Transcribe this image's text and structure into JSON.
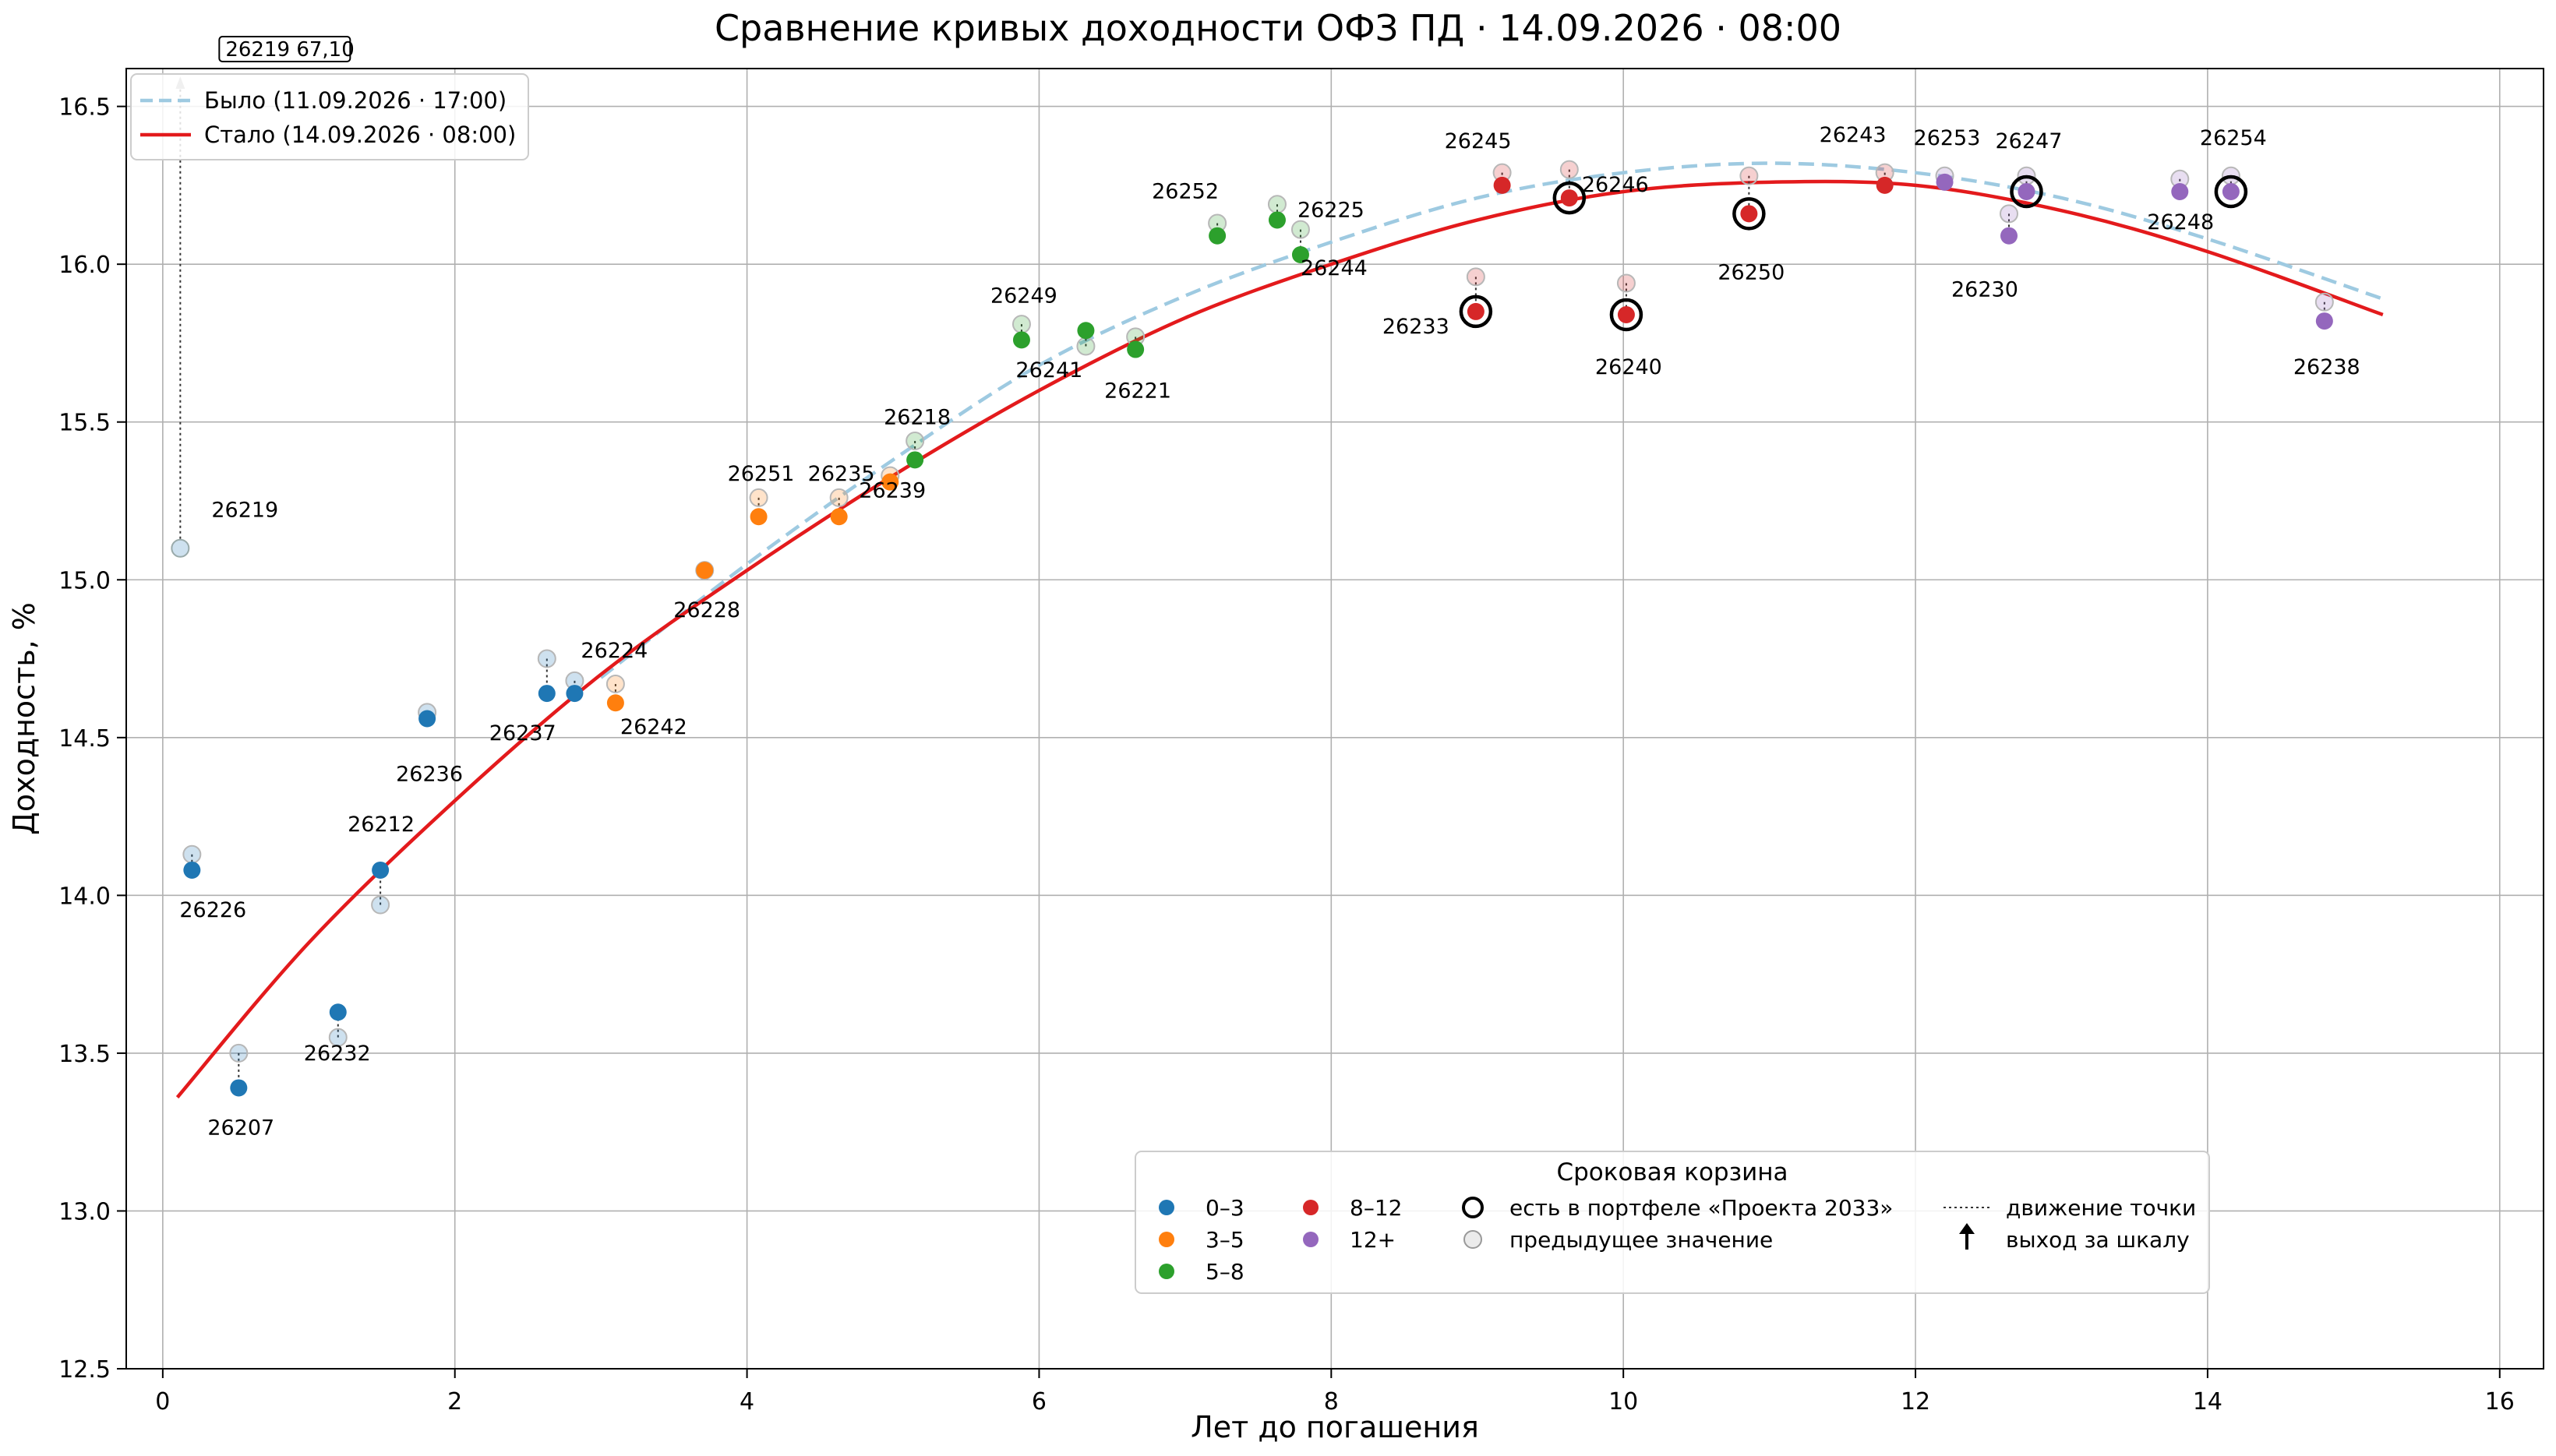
{
  "chart_data": {
    "type": "scatter",
    "title": "Сравнение кривых доходности ОФЗ ПД · 14.09.2026 · 08:00",
    "xlabel": "Лет до погашения",
    "ylabel": "Доходность, %",
    "xlim": [
      -0.25,
      16.3
    ],
    "ylim": [
      12.5,
      16.62
    ],
    "xticks": [
      0,
      2,
      4,
      6,
      8,
      10,
      12,
      14,
      16
    ],
    "yticks": [
      12.5,
      13.0,
      13.5,
      14.0,
      14.5,
      15.0,
      15.5,
      16.0,
      16.5
    ],
    "grid": true,
    "curves": [
      {
        "name": "Было (11.09.2026 · 17:00)",
        "style": "dashed",
        "color": "#9ecae1",
        "x": [
          3.0,
          4.0,
          5.0,
          6.0,
          7.0,
          8.0,
          9.0,
          10.0,
          11.0,
          12.0,
          13.0,
          14.0,
          15.2
        ],
        "y": [
          14.69,
          15.05,
          15.38,
          15.68,
          15.9,
          16.07,
          16.21,
          16.29,
          16.32,
          16.29,
          16.21,
          16.08,
          15.89
        ]
      },
      {
        "name": "Стало (14.09.2026 · 08:00)",
        "style": "solid",
        "color": "#e31a1c",
        "x": [
          0.1,
          1.0,
          2.0,
          3.0,
          4.0,
          5.0,
          6.0,
          7.0,
          8.0,
          9.0,
          10.0,
          11.0,
          12.0,
          13.0,
          14.0,
          15.2
        ],
        "y": [
          13.36,
          13.85,
          14.3,
          14.7,
          15.03,
          15.33,
          15.6,
          15.83,
          16.0,
          16.14,
          16.23,
          16.26,
          16.25,
          16.17,
          16.04,
          15.84
        ]
      }
    ],
    "buckets": [
      {
        "name": "0–3",
        "color": "#1f77b4"
      },
      {
        "name": "3–5",
        "color": "#ff7f0e"
      },
      {
        "name": "5–8",
        "color": "#2ca02c"
      },
      {
        "name": "8–12",
        "color": "#d62728"
      },
      {
        "name": "12+",
        "color": "#9467bd"
      }
    ],
    "bonds": [
      {
        "id": "26219",
        "x": 0.12,
        "prev": 15.1,
        "y": 67.1,
        "bucket": 0,
        "offscale": true
      },
      {
        "id": "26226",
        "x": 0.2,
        "prev": 14.13,
        "y": 14.08,
        "bucket": 0
      },
      {
        "id": "26207",
        "x": 0.52,
        "prev": 13.5,
        "y": 13.39,
        "bucket": 0
      },
      {
        "id": "26232",
        "x": 1.2,
        "prev": 13.55,
        "y": 13.63,
        "bucket": 0
      },
      {
        "id": "26212",
        "x": 1.49,
        "prev": 13.97,
        "y": 14.08,
        "bucket": 0
      },
      {
        "id": "26236",
        "x": 1.81,
        "prev": 14.58,
        "y": 14.56,
        "bucket": 0
      },
      {
        "id": "26237",
        "x": 2.63,
        "prev": 14.75,
        "y": 14.64,
        "bucket": 0
      },
      {
        "id": "26224",
        "x": 2.82,
        "prev": 14.68,
        "y": 14.64,
        "bucket": 0
      },
      {
        "id": "26242",
        "x": 3.1,
        "prev": 14.67,
        "y": 14.61,
        "bucket": 1
      },
      {
        "id": "26228",
        "x": 3.71,
        "prev": 15.03,
        "y": 15.03,
        "bucket": 1
      },
      {
        "id": "26251",
        "x": 4.08,
        "prev": 15.26,
        "y": 15.2,
        "bucket": 1
      },
      {
        "id": "26235",
        "x": 4.63,
        "prev": 15.26,
        "y": 15.2,
        "bucket": 1
      },
      {
        "id": "26239",
        "x": 4.98,
        "prev": 15.33,
        "y": 15.31,
        "bucket": 1
      },
      {
        "id": "26218",
        "x": 5.15,
        "prev": 15.44,
        "y": 15.38,
        "bucket": 2
      },
      {
        "id": "26249",
        "x": 5.88,
        "prev": 15.81,
        "y": 15.76,
        "bucket": 2
      },
      {
        "id": "26241",
        "x": 6.32,
        "prev": 15.74,
        "y": 15.79,
        "bucket": 2
      },
      {
        "id": "26221",
        "x": 6.66,
        "prev": 15.77,
        "y": 15.73,
        "bucket": 2
      },
      {
        "id": "26252",
        "x": 7.22,
        "prev": 16.13,
        "y": 16.09,
        "bucket": 2
      },
      {
        "id": "26225",
        "x": 7.63,
        "prev": 16.19,
        "y": 16.14,
        "bucket": 2
      },
      {
        "id": "26244",
        "x": 7.79,
        "prev": 16.11,
        "y": 16.03,
        "bucket": 2
      },
      {
        "id": "26233",
        "x": 8.99,
        "prev": 15.96,
        "y": 15.85,
        "bucket": 3,
        "portfolio": true
      },
      {
        "id": "26245",
        "x": 9.17,
        "prev": 16.29,
        "y": 16.25,
        "bucket": 3
      },
      {
        "id": "26246",
        "x": 9.63,
        "prev": 16.3,
        "y": 16.21,
        "bucket": 3,
        "portfolio": true
      },
      {
        "id": "26240",
        "x": 10.02,
        "prev": 15.94,
        "y": 15.84,
        "bucket": 3,
        "portfolio": true
      },
      {
        "id": "26250",
        "x": 10.86,
        "prev": 16.28,
        "y": 16.16,
        "bucket": 3,
        "portfolio": true
      },
      {
        "id": "26243",
        "x": 11.79,
        "prev": 16.29,
        "y": 16.25,
        "bucket": 3
      },
      {
        "id": "26253",
        "x": 12.2,
        "prev": 16.28,
        "y": 16.26,
        "bucket": 4
      },
      {
        "id": "26230",
        "x": 12.64,
        "prev": 16.16,
        "y": 16.09,
        "bucket": 4
      },
      {
        "id": "26247",
        "x": 12.76,
        "prev": 16.28,
        "y": 16.23,
        "bucket": 4,
        "portfolio": true
      },
      {
        "id": "26248",
        "x": 13.81,
        "prev": 16.27,
        "y": 16.23,
        "bucket": 4
      },
      {
        "id": "26254",
        "x": 14.16,
        "prev": 16.28,
        "y": 16.23,
        "bucket": 4,
        "portfolio": true
      },
      {
        "id": "26238",
        "x": 14.8,
        "prev": 15.88,
        "y": 15.82,
        "bucket": 4
      }
    ],
    "offscale_label": "26219 67,10",
    "legend": {
      "placement": "upper-left",
      "entries": [
        "Было (11.09.2026 · 17:00)",
        "Стало (14.09.2026 · 08:00)"
      ]
    },
    "bucket_legend": {
      "placement": "lower-right",
      "title": "Сроковая корзина",
      "portfolio": "есть в портфеле «Проекта 2033»",
      "previous": "предыдущее значение",
      "movement": "движение точки",
      "offscale": "выход за шкалу"
    }
  }
}
